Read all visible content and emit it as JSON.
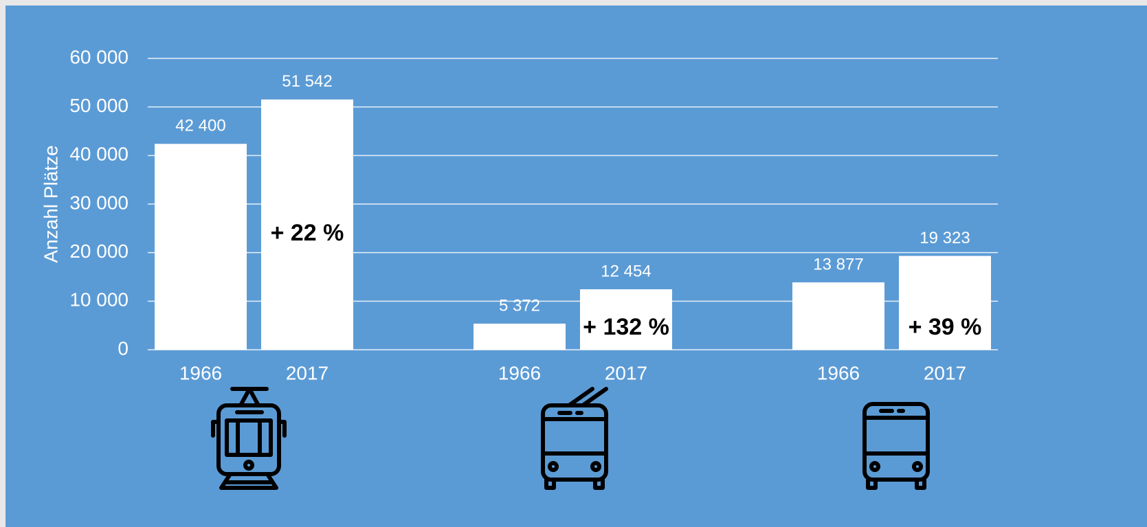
{
  "chart_data": {
    "type": "bar",
    "y_label": "Anzahl Plätze",
    "categories": [
      "1966",
      "2017",
      "1966",
      "2017",
      "1966",
      "2017"
    ],
    "values": [
      42400,
      51542,
      5372,
      12454,
      13877,
      19323
    ],
    "value_labels": [
      "42 400",
      "51 542",
      "5 372",
      "12 454",
      "13 877",
      "19 323"
    ],
    "annotations": [
      "+ 22 %",
      "+ 132 %",
      "+ 39 %"
    ],
    "color": "#ffffff",
    "ylim": [
      0,
      60000
    ],
    "yticks": [
      0,
      {
        "value": 10000,
        "label": "10 000"
      },
      {
        "value": 20000,
        "label": "20 000"
      },
      {
        "value": 30000,
        "label": "30 000"
      },
      {
        "value": 40000,
        "label": "40 000"
      },
      {
        "value": 50000,
        "label": "50 000"
      },
      {
        "value": 60000,
        "label": "60 000"
      }
    ],
    "grid": true
  }
}
